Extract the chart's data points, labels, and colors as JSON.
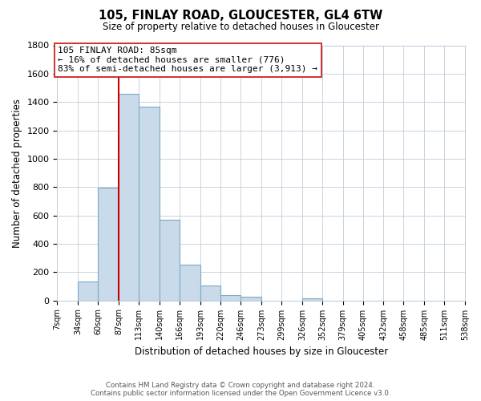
{
  "title": "105, FINLAY ROAD, GLOUCESTER, GL4 6TW",
  "subtitle": "Size of property relative to detached houses in Gloucester",
  "xlabel": "Distribution of detached houses by size in Gloucester",
  "ylabel": "Number of detached properties",
  "bin_labels": [
    "7sqm",
    "34sqm",
    "60sqm",
    "87sqm",
    "113sqm",
    "140sqm",
    "166sqm",
    "193sqm",
    "220sqm",
    "246sqm",
    "273sqm",
    "299sqm",
    "326sqm",
    "352sqm",
    "379sqm",
    "405sqm",
    "432sqm",
    "458sqm",
    "485sqm",
    "511sqm",
    "538sqm"
  ],
  "bin_edges": [
    7,
    34,
    60,
    87,
    113,
    140,
    166,
    193,
    220,
    246,
    273,
    299,
    326,
    352,
    379,
    405,
    432,
    458,
    485,
    511,
    538
  ],
  "bar_heights": [
    0,
    135,
    795,
    1460,
    1365,
    570,
    250,
    105,
    35,
    25,
    0,
    0,
    15,
    0,
    0,
    0,
    0,
    0,
    0,
    0
  ],
  "bar_color": "#c9daea",
  "bar_edge_color": "#7aaac8",
  "vline_x": 87,
  "vline_color": "#cc0000",
  "ylim": [
    0,
    1800
  ],
  "yticks": [
    0,
    200,
    400,
    600,
    800,
    1000,
    1200,
    1400,
    1600,
    1800
  ],
  "annotation_title": "105 FINLAY ROAD: 85sqm",
  "annotation_line1": "← 16% of detached houses are smaller (776)",
  "annotation_line2": "83% of semi-detached houses are larger (3,913) →",
  "footer1": "Contains HM Land Registry data © Crown copyright and database right 2024.",
  "footer2": "Contains public sector information licensed under the Open Government Licence v3.0.",
  "bg_color": "#ffffff",
  "grid_color": "#c0ccd8"
}
